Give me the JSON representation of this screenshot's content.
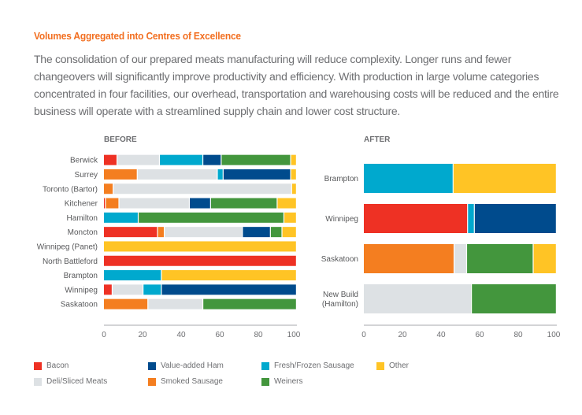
{
  "header": {
    "title": "Volumes Aggregated into Centres of Excellence",
    "intro": "The consolidation of our prepared meats manufacturing will reduce complexity. Longer runs and fewer changeovers will significantly improve productivity and efficiency. With production in large volume categories concentrated in four facilities, our overhead, transportation and warehousing costs will be reduced and the entire business will operate with a streamlined supply chain and lower cost structure."
  },
  "legend": [
    {
      "key": "bacon",
      "label": "Bacon",
      "color": "#ee3124"
    },
    {
      "key": "ham",
      "label": "Value-added Ham",
      "color": "#004b8d"
    },
    {
      "key": "fresh",
      "label": "Fresh/Frozen Sausage",
      "color": "#00a9ce"
    },
    {
      "key": "other",
      "label": "Other",
      "color": "#ffc425"
    },
    {
      "key": "deli",
      "label": "Deli/Sliced Meats",
      "color": "#dde1e4"
    },
    {
      "key": "smoked",
      "label": "Smoked Sausage",
      "color": "#f47e20"
    },
    {
      "key": "weiners",
      "label": "Weiners",
      "color": "#43963d"
    }
  ],
  "chart_data": [
    {
      "type": "bar",
      "orientation": "horizontal",
      "stacked": true,
      "title": "BEFORE",
      "xlabel": "",
      "ylabel": "",
      "xlim": [
        0,
        100
      ],
      "xticks": [
        0,
        20,
        40,
        60,
        80,
        100
      ],
      "categories": [
        "Berwick",
        "Surrey",
        "Toronto (Bartor)",
        "Kitchener",
        "Hamilton",
        "Moncton",
        "Winnipeg (Panet)",
        "North Battleford",
        "Brampton",
        "Winnipeg",
        "Saskatoon"
      ],
      "series": [
        {
          "name": "Bacon",
          "key": "bacon",
          "values": [
            7,
            0,
            0,
            1,
            0,
            28,
            0,
            100,
            0,
            4.5,
            0
          ]
        },
        {
          "name": "Smoked Sausage",
          "key": "smoked",
          "values": [
            0,
            17.5,
            5,
            7,
            0,
            3.5,
            0,
            0,
            0,
            0,
            23
          ]
        },
        {
          "name": "Deli/Sliced Meats",
          "key": "deli",
          "values": [
            22,
            41.5,
            92.5,
            36.5,
            0,
            40.5,
            0,
            0,
            0,
            16,
            28.5
          ]
        },
        {
          "name": "Fresh/Frozen Sausage",
          "key": "fresh",
          "values": [
            22.5,
            3,
            0,
            0,
            18,
            0,
            0,
            0,
            30,
            9.5,
            0
          ]
        },
        {
          "name": "Value-added Ham",
          "key": "ham",
          "values": [
            9.5,
            35,
            0,
            11,
            0,
            14.5,
            0,
            0,
            0,
            70,
            0
          ]
        },
        {
          "name": "Weiners",
          "key": "weiners",
          "values": [
            36,
            0,
            0,
            34.5,
            75.5,
            6,
            0,
            0,
            0,
            0,
            48.5
          ]
        },
        {
          "name": "Other",
          "key": "other",
          "values": [
            3,
            3,
            2.5,
            10,
            6.5,
            7.5,
            100,
            0,
            70,
            0,
            0
          ]
        }
      ]
    },
    {
      "type": "bar",
      "orientation": "horizontal",
      "stacked": true,
      "title": "AFTER",
      "xlabel": "",
      "ylabel": "",
      "xlim": [
        0,
        100
      ],
      "xticks": [
        0,
        20,
        40,
        60,
        80,
        100
      ],
      "categories": [
        "Brampton",
        "Winnipeg",
        "Saskatoon",
        "New Build (Hamilton)"
      ],
      "category_lines": [
        [
          "Brampton"
        ],
        [
          "Winnipeg"
        ],
        [
          "Saskatoon"
        ],
        [
          "New Build",
          "(Hamilton)"
        ]
      ],
      "series": [
        {
          "name": "Bacon",
          "key": "bacon",
          "values": [
            0,
            54,
            0,
            0
          ]
        },
        {
          "name": "Smoked Sausage",
          "key": "smoked",
          "values": [
            0,
            0,
            47,
            0
          ]
        },
        {
          "name": "Deli/Sliced Meats",
          "key": "deli",
          "values": [
            0,
            0,
            6.5,
            56
          ]
        },
        {
          "name": "Fresh/Frozen Sausage",
          "key": "fresh",
          "values": [
            46.5,
            3.5,
            0,
            0
          ]
        },
        {
          "name": "Value-added Ham",
          "key": "ham",
          "values": [
            0,
            42.5,
            0,
            0
          ]
        },
        {
          "name": "Weiners",
          "key": "weiners",
          "values": [
            0,
            0,
            34.5,
            44
          ]
        },
        {
          "name": "Other",
          "key": "other",
          "values": [
            53.5,
            0,
            12,
            0
          ]
        }
      ]
    }
  ]
}
